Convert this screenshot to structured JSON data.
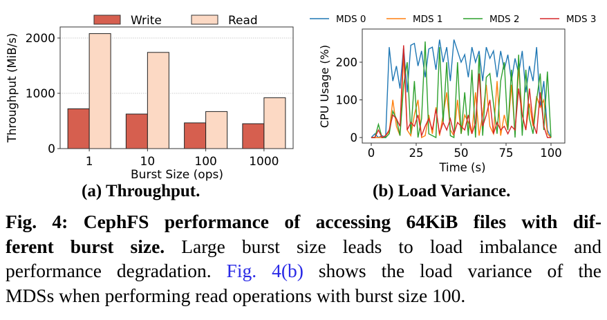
{
  "chart_data": [
    {
      "type": "bar",
      "title": "",
      "xlabel": "Burst Size (ops)",
      "ylabel": "Throughput (MiB/s)",
      "categories": [
        "1",
        "10",
        "100",
        "1000"
      ],
      "yticks": [
        "0",
        "1000",
        "2000"
      ],
      "ylim": [
        0,
        2200
      ],
      "grid": true,
      "legend": "top",
      "series": [
        {
          "name": "Write",
          "color": "#d65f4f",
          "values": [
            720,
            625,
            465,
            450
          ]
        },
        {
          "name": "Read",
          "color": "#fcd9c4",
          "values": [
            2080,
            1740,
            670,
            920
          ]
        }
      ],
      "subcaption": "(a) Throughput."
    },
    {
      "type": "line",
      "title": "",
      "xlabel": "Time (s)",
      "ylabel": "CPU Usage (%)",
      "xticks": [
        "0",
        "25",
        "50",
        "75",
        "100"
      ],
      "yticks": [
        "0",
        "100",
        "200"
      ],
      "xlim": [
        -4,
        108
      ],
      "ylim": [
        -12,
        280
      ],
      "x_step": 2,
      "legend": "top",
      "series": [
        {
          "name": "MDS 0",
          "color": "#1f77b4",
          "values": [
            0,
            10,
            0,
            5,
            0,
            240,
            150,
            190,
            130,
            240,
            120,
            245,
            250,
            190,
            230,
            160,
            235,
            240,
            180,
            260,
            200,
            240,
            150,
            260,
            230,
            200,
            220,
            160,
            240,
            200,
            230,
            150,
            240,
            210,
            230,
            160,
            230,
            180,
            220,
            150,
            210,
            170,
            230,
            120,
            190,
            150,
            240,
            80,
            150,
            20,
            0
          ]
        },
        {
          "name": "MDS 1",
          "color": "#ff7f0e",
          "values": [
            0,
            0,
            0,
            0,
            5,
            15,
            100,
            30,
            5,
            220,
            20,
            5,
            60,
            100,
            0,
            5,
            60,
            10,
            80,
            5,
            60,
            120,
            20,
            5,
            100,
            10,
            60,
            40,
            10,
            120,
            5,
            60,
            140,
            30,
            10,
            150,
            5,
            60,
            20,
            140,
            10,
            185,
            60,
            20,
            90,
            30,
            110,
            80,
            100,
            10,
            0
          ]
        },
        {
          "name": "MDS 2",
          "color": "#2ca02c",
          "values": [
            0,
            0,
            35,
            0,
            0,
            10,
            70,
            50,
            5,
            140,
            200,
            10,
            150,
            0,
            50,
            255,
            10,
            5,
            0,
            240,
            40,
            200,
            5,
            0,
            200,
            10,
            120,
            5,
            180,
            0,
            220,
            5,
            160,
            170,
            90,
            10,
            150,
            200,
            20,
            180,
            0,
            220,
            5,
            180,
            50,
            10,
            100,
            170,
            20,
            175,
            0
          ]
        },
        {
          "name": "MDS 3",
          "color": "#d62728",
          "values": [
            0,
            0,
            20,
            0,
            5,
            20,
            60,
            50,
            30,
            245,
            20,
            40,
            30,
            60,
            5,
            30,
            50,
            20,
            75,
            10,
            40,
            20,
            50,
            10,
            40,
            30,
            20,
            60,
            10,
            40,
            170,
            30,
            60,
            100,
            10,
            40,
            20,
            30,
            10,
            30,
            20,
            130,
            60,
            20,
            130,
            40,
            10,
            120,
            30,
            0,
            0
          ]
        }
      ],
      "subcaption": "(b) Load Variance."
    }
  ],
  "caption": {
    "line1": "Fig. 4: CephFS performance of accessing 64KiB files with dif-",
    "line2_bold": "ferent burst size.",
    "line2_rest": " Large burst size leads to load imbalance and",
    "line3_pre": "performance degradation. ",
    "line3_ref": "Fig. 4(b)",
    "line3_post": " shows the load variance of the",
    "line4": "MDSs when performing read operations with burst size 100."
  }
}
